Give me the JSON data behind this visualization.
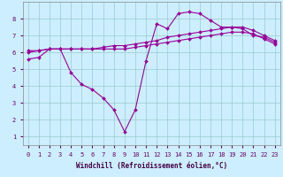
{
  "xlabel": "Windchill (Refroidissement éolien,°C)",
  "bg_color": "#cceeff",
  "line_color": "#990099",
  "xlim": [
    -0.5,
    23.5
  ],
  "ylim": [
    0.5,
    9.0
  ],
  "xticks": [
    0,
    1,
    2,
    3,
    4,
    5,
    6,
    7,
    8,
    9,
    10,
    11,
    12,
    13,
    14,
    15,
    16,
    17,
    18,
    19,
    20,
    21,
    22,
    23
  ],
  "yticks": [
    1,
    2,
    3,
    4,
    5,
    6,
    7,
    8
  ],
  "series": [
    {
      "x": [
        0,
        1,
        2,
        3,
        4,
        5,
        6,
        7,
        8,
        9,
        10,
        11,
        12,
        13,
        14,
        15,
        16,
        17,
        18,
        19,
        20,
        21,
        22,
        23
      ],
      "y": [
        5.6,
        5.7,
        6.2,
        6.2,
        4.8,
        4.1,
        3.8,
        3.3,
        2.6,
        1.3,
        2.6,
        5.5,
        7.7,
        7.4,
        8.3,
        8.4,
        8.3,
        7.9,
        7.5,
        7.5,
        7.4,
        7.0,
        6.9,
        6.6
      ]
    },
    {
      "x": [
        0,
        1,
        2,
        3,
        4,
        5,
        6,
        7,
        8,
        9,
        10,
        11,
        12,
        13,
        14,
        15,
        16,
        17,
        18,
        19,
        20,
        21,
        22,
        23
      ],
      "y": [
        6.1,
        6.1,
        6.2,
        6.2,
        6.2,
        6.2,
        6.2,
        6.3,
        6.4,
        6.4,
        6.5,
        6.6,
        6.7,
        6.9,
        7.0,
        7.1,
        7.2,
        7.3,
        7.4,
        7.5,
        7.5,
        7.3,
        7.0,
        6.7
      ]
    },
    {
      "x": [
        0,
        1,
        2,
        3,
        4,
        5,
        6,
        7,
        8,
        9,
        10,
        11,
        12,
        13,
        14,
        15,
        16,
        17,
        18,
        19,
        20,
        21,
        22,
        23
      ],
      "y": [
        6.0,
        6.1,
        6.2,
        6.2,
        6.2,
        6.2,
        6.2,
        6.2,
        6.2,
        6.2,
        6.3,
        6.4,
        6.5,
        6.6,
        6.7,
        6.8,
        6.9,
        7.0,
        7.1,
        7.2,
        7.2,
        7.1,
        6.8,
        6.5
      ]
    }
  ]
}
